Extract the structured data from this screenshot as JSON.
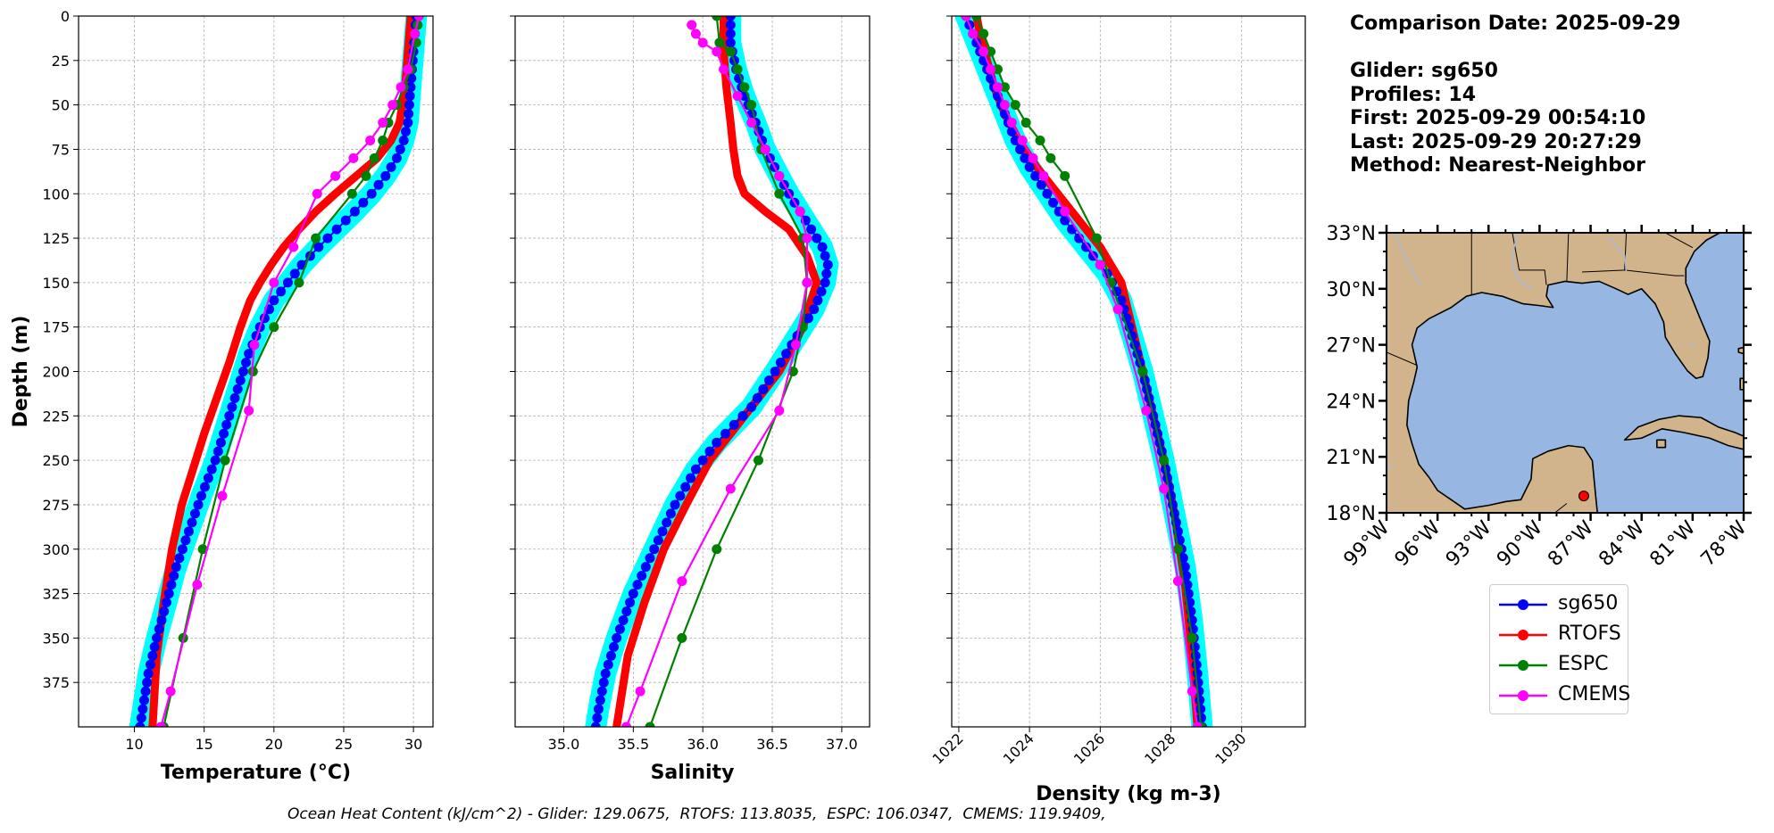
{
  "info": {
    "date_line": "Comparison Date: 2025-09-29",
    "glider_line": "Glider: sg650",
    "profiles_line": "Profiles: 14",
    "first_line": "First: 2025-09-29 00:54:10",
    "last_line": "Last: 2025-09-29 20:27:29",
    "method_line": "Method: Nearest-Neighbor"
  },
  "footnote": "Ocean Heat Content (kJ/cm^2) - Glider: 129.0675,  RTOFS: 113.8035,  ESPC: 106.0347,  CMEMS: 119.9409,",
  "colors": {
    "sg650": "#0000ff",
    "RTOFS": "#ff0000",
    "ESPC": "#008000",
    "CMEMS": "#ff00ff",
    "envelope": "#00ffff",
    "land": "#d2b48c",
    "ocean": "#97b6e1"
  },
  "legend": [
    "sg650",
    "RTOFS",
    "ESPC",
    "CMEMS"
  ],
  "chart_data": [
    {
      "type": "line",
      "xlabel": "Temperature (°C)",
      "ylabel": "Depth (m)",
      "xlim": [
        6,
        31.4
      ],
      "ylim": [
        400,
        0
      ],
      "xticks": [
        10,
        15,
        20,
        25,
        30
      ],
      "yticks": [
        0,
        25,
        50,
        75,
        100,
        125,
        150,
        175,
        200,
        225,
        250,
        275,
        300,
        325,
        350,
        375
      ],
      "grid": true,
      "series": [
        {
          "name": "sg650",
          "x": [
            30.2,
            30.1,
            30.0,
            29.8,
            29.6,
            29.3,
            28.8,
            28.0,
            27.0,
            25.8,
            24.5,
            23.2,
            22.0,
            21.0,
            20.0,
            19.0,
            18.2,
            17.4,
            16.6,
            15.8,
            14.8,
            13.9,
            13.0,
            12.3,
            11.6,
            11.0,
            10.6,
            10.4
          ],
          "y": [
            0,
            10,
            20,
            40,
            60,
            70,
            80,
            90,
            100,
            110,
            120,
            130,
            140,
            150,
            160,
            175,
            190,
            210,
            230,
            250,
            270,
            290,
            310,
            330,
            350,
            370,
            390,
            400
          ]
        },
        {
          "name": "RTOFS",
          "x": [
            29.8,
            29.7,
            29.6,
            29.4,
            29.0,
            28.4,
            27.4,
            25.9,
            24.4,
            23.0,
            21.8,
            20.7,
            19.8,
            19.0,
            18.3,
            17.6,
            16.8,
            15.9,
            15.0,
            14.2,
            13.4,
            12.7,
            12.1,
            11.6,
            11.3
          ],
          "y": [
            0,
            10,
            20,
            40,
            60,
            70,
            80,
            90,
            100,
            110,
            120,
            130,
            140,
            150,
            160,
            175,
            195,
            215,
            235,
            255,
            275,
            300,
            330,
            360,
            400
          ]
        },
        {
          "name": "ESPC",
          "x": [
            30.3,
            30.2,
            29.8,
            29.3,
            28.8,
            28.2,
            27.8,
            27.2,
            26.6,
            25.6,
            23.0,
            21.8,
            20.0,
            18.5,
            16.5,
            14.9,
            13.5,
            12.1
          ],
          "y": [
            5,
            15,
            30,
            40,
            50,
            60,
            70,
            80,
            90,
            100,
            125,
            150,
            175,
            200,
            250,
            300,
            350,
            400
          ]
        },
        {
          "name": "CMEMS",
          "x": [
            30.4,
            30.1,
            29.6,
            29.1,
            28.5,
            27.8,
            26.9,
            25.7,
            24.4,
            23.1,
            21.4,
            20.0,
            18.6,
            18.2,
            16.3,
            14.5,
            12.6,
            11.9
          ],
          "y": [
            0,
            10,
            30,
            40,
            50,
            60,
            70,
            80,
            90,
            100,
            130,
            150,
            185,
            222,
            270,
            320,
            380,
            400
          ]
        }
      ]
    },
    {
      "type": "line",
      "xlabel": "Salinity",
      "xlim": [
        34.65,
        37.2
      ],
      "ylim": [
        400,
        0
      ],
      "xticks": [
        35.0,
        35.5,
        36.0,
        36.5,
        37.0
      ],
      "grid": true,
      "series": [
        {
          "name": "sg650",
          "x": [
            36.2,
            36.2,
            36.24,
            36.3,
            36.38,
            36.45,
            36.55,
            36.62,
            36.7,
            36.78,
            36.86,
            36.9,
            36.88,
            36.8,
            36.68,
            36.52,
            36.35,
            36.1,
            35.95,
            35.8,
            35.65,
            35.5,
            35.38,
            35.3,
            35.25,
            35.23
          ],
          "y": [
            0,
            15,
            30,
            45,
            60,
            75,
            90,
            100,
            110,
            120,
            130,
            140,
            150,
            165,
            180,
            200,
            220,
            240,
            255,
            275,
            300,
            325,
            350,
            370,
            390,
            400
          ]
        },
        {
          "name": "RTOFS",
          "x": [
            36.15,
            36.15,
            36.17,
            36.2,
            36.22,
            36.25,
            36.3,
            36.45,
            36.62,
            36.75,
            36.82,
            36.72,
            36.55,
            36.3,
            36.05,
            35.88,
            35.72,
            35.58,
            35.46,
            35.38
          ],
          "y": [
            0,
            20,
            40,
            60,
            75,
            90,
            100,
            110,
            120,
            135,
            150,
            175,
            200,
            225,
            250,
            275,
            300,
            330,
            360,
            400
          ]
        },
        {
          "name": "ESPC",
          "x": [
            36.1,
            36.12,
            36.2,
            36.25,
            36.3,
            36.35,
            36.42,
            36.55,
            36.72,
            36.75,
            36.72,
            36.65,
            36.4,
            36.1,
            35.85,
            35.62
          ],
          "y": [
            0,
            15,
            20,
            30,
            40,
            50,
            75,
            100,
            125,
            150,
            175,
            200,
            250,
            300,
            350,
            400
          ]
        },
        {
          "name": "CMEMS",
          "x": [
            35.92,
            35.95,
            36.0,
            36.1,
            36.15,
            36.25,
            36.35,
            36.45,
            36.55,
            36.7,
            36.75,
            36.75,
            36.67,
            36.55,
            36.2,
            35.85,
            35.55,
            35.45
          ],
          "y": [
            5,
            10,
            15,
            20,
            30,
            45,
            60,
            75,
            90,
            110,
            125,
            150,
            185,
            222,
            266,
            318,
            380,
            400
          ]
        }
      ]
    },
    {
      "type": "line",
      "xlabel": "Density (kg m-3)",
      "xlim": [
        1021.8,
        1031.8
      ],
      "ylim": [
        400,
        0
      ],
      "xticks": [
        1022,
        1024,
        1026,
        1028,
        1030
      ],
      "grid": true,
      "series": [
        {
          "name": "sg650",
          "x": [
            1022.2,
            1022.4,
            1022.7,
            1023.0,
            1023.3,
            1023.6,
            1024.0,
            1024.5,
            1025.0,
            1025.6,
            1026.2,
            1026.6,
            1026.9,
            1027.2,
            1027.5,
            1027.8,
            1028.1,
            1028.4,
            1028.6,
            1028.75,
            1028.88
          ],
          "y": [
            0,
            10,
            25,
            40,
            55,
            70,
            85,
            100,
            115,
            130,
            145,
            160,
            180,
            200,
            225,
            250,
            280,
            310,
            340,
            370,
            400
          ]
        },
        {
          "name": "RTOFS",
          "x": [
            1022.5,
            1022.6,
            1022.8,
            1023.0,
            1023.3,
            1023.7,
            1024.2,
            1024.8,
            1025.4,
            1026.0,
            1026.6,
            1026.9,
            1027.2,
            1027.5,
            1027.8,
            1028.1,
            1028.4,
            1028.6,
            1028.75
          ],
          "y": [
            0,
            10,
            25,
            40,
            55,
            70,
            85,
            100,
            115,
            130,
            150,
            175,
            200,
            225,
            250,
            280,
            320,
            360,
            400
          ]
        },
        {
          "name": "ESPC",
          "x": [
            1022.5,
            1022.7,
            1022.9,
            1023.1,
            1023.3,
            1023.6,
            1023.9,
            1024.3,
            1024.6,
            1025.0,
            1025.9,
            1026.3,
            1027.2,
            1027.8,
            1028.2,
            1028.6,
            1028.85
          ],
          "y": [
            0,
            10,
            20,
            30,
            40,
            50,
            60,
            70,
            80,
            90,
            125,
            150,
            200,
            250,
            300,
            350,
            400
          ]
        },
        {
          "name": "CMEMS",
          "x": [
            1022.2,
            1022.4,
            1022.7,
            1022.9,
            1023.1,
            1023.3,
            1023.5,
            1023.8,
            1024.1,
            1024.4,
            1025.0,
            1026.0,
            1026.5,
            1027.3,
            1027.8,
            1028.2,
            1028.6,
            1028.75
          ],
          "y": [
            0,
            10,
            20,
            30,
            40,
            50,
            60,
            70,
            80,
            90,
            110,
            140,
            165,
            222,
            266,
            318,
            380,
            400
          ]
        }
      ]
    },
    {
      "type": "map",
      "lon_range": [
        -99,
        -78
      ],
      "lat_range": [
        18,
        33
      ],
      "xticks": [
        "99°W",
        "96°W",
        "93°W",
        "90°W",
        "87°W",
        "84°W",
        "81°W",
        "78°W"
      ],
      "yticks": [
        "33°N",
        "30°N",
        "27°N",
        "24°N",
        "21°N",
        "18°N"
      ],
      "marker": {
        "lon": -87.4,
        "lat": 18.9
      }
    }
  ]
}
